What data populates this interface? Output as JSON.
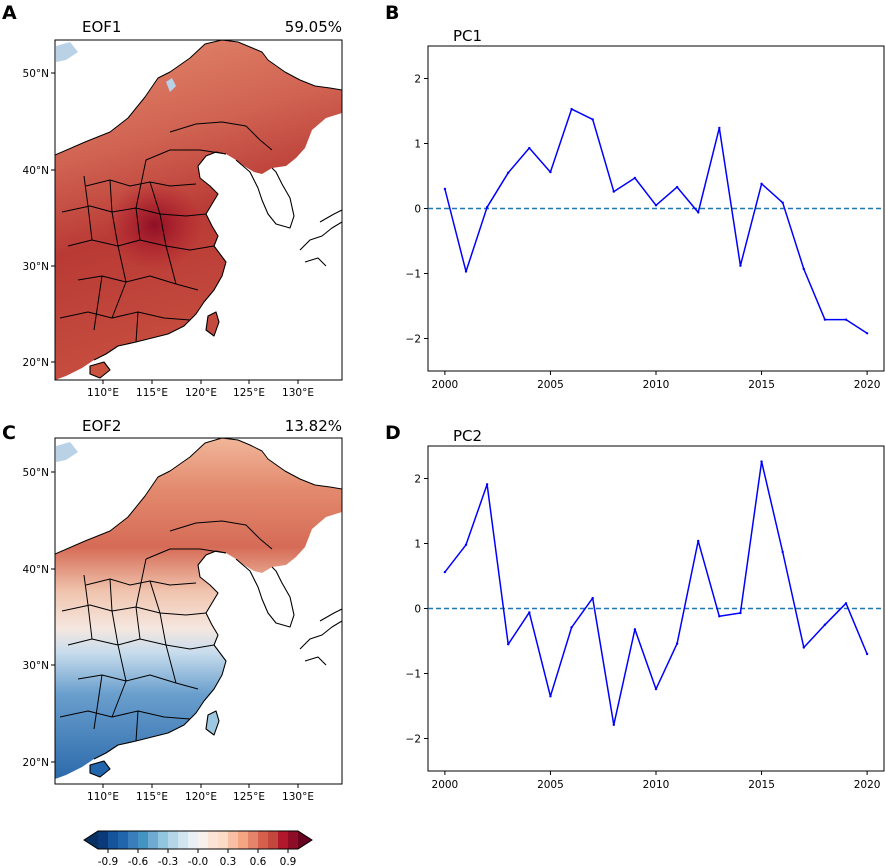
{
  "panels": {
    "A": {
      "letter": "A",
      "title": "EOF1",
      "variance": "59.05%"
    },
    "B": {
      "letter": "B",
      "title": "PC1"
    },
    "C": {
      "letter": "C",
      "title": "EOF2",
      "variance": "13.82%"
    },
    "D": {
      "letter": "D",
      "title": "PC2"
    }
  },
  "map_axes": {
    "lat_labels": [
      "50°N",
      "40°N",
      "30°N",
      "20°N"
    ],
    "lon_labels": [
      "110°E",
      "115°E",
      "120°E",
      "125°E",
      "130°E"
    ]
  },
  "colorbar": {
    "ticks": [
      "-0.9",
      "-0.6",
      "-0.3",
      "-0.0",
      "0.3",
      "0.6",
      "0.9"
    ],
    "range": [
      -1.0,
      1.0
    ],
    "colors": [
      "#0b3a78",
      "#15549a",
      "#2166ac",
      "#3a7fbc",
      "#4393c3",
      "#6eaad2",
      "#92c5de",
      "#b5d6e8",
      "#d1e5f0",
      "#e8f0f6",
      "#f7f1ee",
      "#fbe3d6",
      "#fddbc7",
      "#f8bfa4",
      "#f4a582",
      "#e6836b",
      "#d6604d",
      "#c4473e",
      "#b2182b",
      "#8c0d25"
    ]
  },
  "colors": {
    "pc_line": "#0000ff",
    "zero_line": "#1f77b4"
  },
  "chart_data": [
    {
      "id": "PC1",
      "type": "line",
      "title": "PC1",
      "x": [
        2000,
        2001,
        2002,
        2003,
        2004,
        2005,
        2006,
        2007,
        2008,
        2009,
        2010,
        2011,
        2012,
        2013,
        2014,
        2015,
        2016,
        2017,
        2018,
        2019,
        2020
      ],
      "values": [
        0.3,
        -0.97,
        0.02,
        0.55,
        0.93,
        0.56,
        1.53,
        1.37,
        0.26,
        0.47,
        0.05,
        0.33,
        -0.06,
        1.24,
        -0.88,
        0.38,
        0.09,
        -0.93,
        -1.71,
        -1.71,
        -1.92
      ],
      "xlim": [
        1999.2,
        2020.8
      ],
      "ylim": [
        -2.5,
        2.5
      ],
      "xticks": [
        2000,
        2005,
        2010,
        2015,
        2020
      ],
      "yticks": [
        2,
        1,
        0,
        -1,
        -2
      ],
      "ytick_labels": [
        "2",
        "1",
        "0",
        "−1",
        "−2"
      ],
      "reference_line": 0
    },
    {
      "id": "PC2",
      "type": "line",
      "title": "PC2",
      "x": [
        2000,
        2001,
        2002,
        2003,
        2004,
        2005,
        2006,
        2007,
        2008,
        2009,
        2010,
        2011,
        2012,
        2013,
        2014,
        2015,
        2016,
        2017,
        2018,
        2019,
        2020
      ],
      "values": [
        0.56,
        0.98,
        1.91,
        -0.55,
        -0.06,
        -1.35,
        -0.29,
        0.16,
        -1.79,
        -0.32,
        -1.24,
        -0.54,
        1.04,
        -0.12,
        -0.07,
        2.26,
        0.87,
        -0.6,
        -0.25,
        0.08,
        -0.7
      ],
      "xlim": [
        1999.2,
        2020.8
      ],
      "ylim": [
        -2.5,
        2.5
      ],
      "xticks": [
        2000,
        2005,
        2010,
        2015,
        2020
      ],
      "yticks": [
        2,
        1,
        0,
        -1,
        -2
      ],
      "ytick_labels": [
        "2",
        "1",
        "0",
        "−1",
        "−2"
      ],
      "reference_line": 0
    }
  ]
}
